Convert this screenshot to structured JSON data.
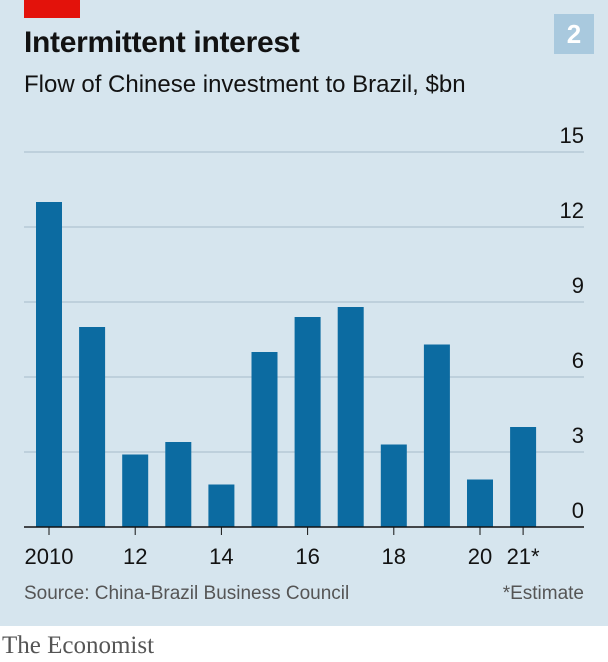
{
  "badge": "2",
  "chart_data": {
    "type": "bar",
    "title": "Intermittent interest",
    "subtitle": "Flow of Chinese investment to Brazil, $bn",
    "categories": [
      "2010",
      "2011",
      "2012",
      "2013",
      "2014",
      "2015",
      "2016",
      "2017",
      "2018",
      "2019",
      "2020",
      "2021*"
    ],
    "x_tick_labels": [
      "2010",
      "",
      "12",
      "",
      "14",
      "",
      "16",
      "",
      "18",
      "",
      "20",
      "21*"
    ],
    "values": [
      13.0,
      8.0,
      2.9,
      3.4,
      1.7,
      7.0,
      8.4,
      8.8,
      3.3,
      7.3,
      1.9,
      4.0
    ],
    "ylim": [
      0,
      15
    ],
    "y_ticks": [
      0,
      3,
      6,
      9,
      12,
      15
    ],
    "y_axis_side": "right",
    "grid": true,
    "bar_color": "#0c6ba1"
  },
  "source": "Source: China-Brazil Business Council",
  "note": "*Estimate",
  "brand": "The Economist"
}
